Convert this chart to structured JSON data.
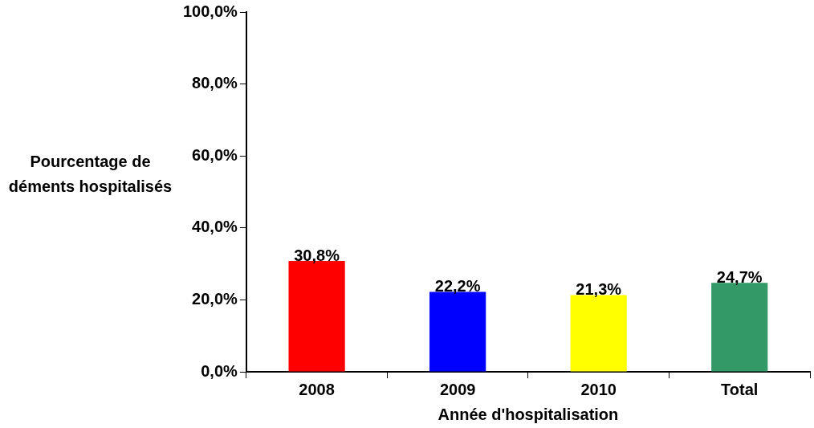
{
  "chart_data": {
    "type": "bar",
    "xlabel": "Année d'hospitalisation",
    "ylabel": "Pourcentage de déments hospitalisés",
    "categories": [
      "2008",
      "2009",
      "2010",
      "Total"
    ],
    "values": [
      30.8,
      22.2,
      21.3,
      24.7
    ],
    "colors": [
      "#ff0000",
      "#0000ff",
      "#ffff00",
      "#339966"
    ],
    "value_labels": [
      "30,8%",
      "22,2%",
      "21,3%",
      "24,7%"
    ],
    "ylim": [
      0,
      100
    ],
    "yticks": [
      {
        "value": 0,
        "label": "0,0%"
      },
      {
        "value": 20,
        "label": "20,0%"
      },
      {
        "value": 40,
        "label": "40,0%"
      },
      {
        "value": 60,
        "label": "60,0%"
      },
      {
        "value": 80,
        "label": "80,0%"
      },
      {
        "value": 100,
        "label": "100,0%"
      }
    ]
  }
}
